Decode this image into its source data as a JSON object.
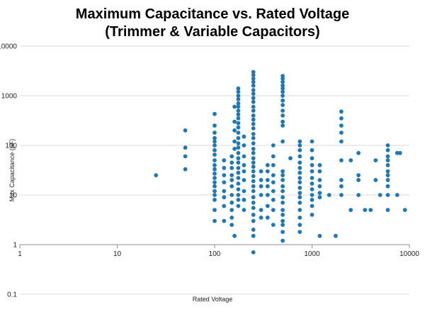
{
  "chart_data": {
    "type": "scatter",
    "title": [
      "Maximum Capacitance vs. Rated Voltage",
      "(Trimmer & Variable Capacitors)"
    ],
    "xlabel": "Rated Voltage",
    "ylabel": "Max Capacitance (pF)",
    "x_scale": "log",
    "y_scale": "log",
    "xlim": [
      1,
      10000
    ],
    "ylim": [
      0.1,
      10000
    ],
    "x_ticks": [
      "1",
      "10",
      "100",
      "1000",
      "10000"
    ],
    "y_ticks": [
      "0.1",
      "1",
      "10",
      "100",
      "1000",
      "10000"
    ],
    "grid": "horizontal",
    "marker_color": "#1f77b4",
    "series": [
      {
        "points": [
          [
            25,
            25
          ],
          [
            50,
            200
          ],
          [
            50,
            90
          ],
          [
            50,
            60
          ],
          [
            50,
            33
          ],
          [
            100,
            430
          ],
          [
            100,
            250
          ],
          [
            100,
            180
          ],
          [
            100,
            140
          ],
          [
            100,
            120
          ],
          [
            100,
            100
          ],
          [
            100,
            80
          ],
          [
            100,
            65
          ],
          [
            100,
            50
          ],
          [
            100,
            40
          ],
          [
            100,
            33
          ],
          [
            100,
            27
          ],
          [
            100,
            22
          ],
          [
            100,
            18
          ],
          [
            100,
            15
          ],
          [
            100,
            12
          ],
          [
            100,
            10
          ],
          [
            100,
            8
          ],
          [
            100,
            5
          ],
          [
            100,
            3
          ],
          [
            125,
            50
          ],
          [
            125,
            35
          ],
          [
            125,
            25
          ],
          [
            125,
            18
          ],
          [
            125,
            12
          ],
          [
            125,
            9
          ],
          [
            125,
            6
          ],
          [
            125,
            3
          ],
          [
            150,
            60
          ],
          [
            150,
            45
          ],
          [
            150,
            35
          ],
          [
            150,
            25
          ],
          [
            150,
            20
          ],
          [
            150,
            15
          ],
          [
            150,
            10
          ],
          [
            150,
            7
          ],
          [
            150,
            5
          ],
          [
            150,
            3.5
          ],
          [
            150,
            2.5
          ],
          [
            160,
            1.5
          ],
          [
            160,
            600
          ],
          [
            160,
            300
          ],
          [
            160,
            200
          ],
          [
            160,
            120
          ],
          [
            160,
            85
          ],
          [
            175,
            1400
          ],
          [
            175,
            1200
          ],
          [
            175,
            1000
          ],
          [
            175,
            850
          ],
          [
            175,
            700
          ],
          [
            175,
            600
          ],
          [
            175,
            500
          ],
          [
            175,
            420
          ],
          [
            175,
            350
          ],
          [
            175,
            280
          ],
          [
            175,
            230
          ],
          [
            175,
            180
          ],
          [
            175,
            140
          ],
          [
            175,
            110
          ],
          [
            175,
            90
          ],
          [
            175,
            70
          ],
          [
            175,
            55
          ],
          [
            175,
            45
          ],
          [
            175,
            35
          ],
          [
            175,
            28
          ],
          [
            175,
            22
          ],
          [
            175,
            17
          ],
          [
            175,
            13
          ],
          [
            175,
            10
          ],
          [
            175,
            8
          ],
          [
            175,
            6
          ],
          [
            200,
            150
          ],
          [
            200,
            100
          ],
          [
            200,
            60
          ],
          [
            200,
            40
          ],
          [
            200,
            30
          ],
          [
            200,
            20
          ],
          [
            200,
            12
          ],
          [
            200,
            8
          ],
          [
            200,
            5
          ],
          [
            250,
            3000
          ],
          [
            250,
            2600
          ],
          [
            250,
            2200
          ],
          [
            250,
            1900
          ],
          [
            250,
            1600
          ],
          [
            250,
            1300
          ],
          [
            250,
            1100
          ],
          [
            250,
            900
          ],
          [
            250,
            750
          ],
          [
            250,
            600
          ],
          [
            250,
            500
          ],
          [
            250,
            400
          ],
          [
            250,
            330
          ],
          [
            250,
            270
          ],
          [
            250,
            220
          ],
          [
            250,
            170
          ],
          [
            250,
            140
          ],
          [
            250,
            110
          ],
          [
            250,
            85
          ],
          [
            250,
            70
          ],
          [
            250,
            55
          ],
          [
            250,
            45
          ],
          [
            250,
            37
          ],
          [
            250,
            30
          ],
          [
            250,
            24
          ],
          [
            250,
            19
          ],
          [
            250,
            15
          ],
          [
            250,
            12
          ],
          [
            250,
            9
          ],
          [
            250,
            7
          ],
          [
            250,
            5.5
          ],
          [
            250,
            4
          ],
          [
            250,
            3
          ],
          [
            250,
            2
          ],
          [
            250,
            1.5
          ],
          [
            250,
            0.7
          ],
          [
            300,
            30
          ],
          [
            300,
            20
          ],
          [
            300,
            15
          ],
          [
            300,
            10
          ],
          [
            300,
            5
          ],
          [
            300,
            3.5
          ],
          [
            350,
            40
          ],
          [
            350,
            30
          ],
          [
            350,
            20
          ],
          [
            350,
            15
          ],
          [
            350,
            10
          ],
          [
            350,
            6
          ],
          [
            350,
            3.5
          ],
          [
            400,
            100
          ],
          [
            400,
            60
          ],
          [
            400,
            40
          ],
          [
            400,
            25
          ],
          [
            400,
            18
          ],
          [
            400,
            12
          ],
          [
            400,
            8
          ],
          [
            400,
            5
          ],
          [
            400,
            2.5
          ],
          [
            500,
            2500
          ],
          [
            500,
            2200
          ],
          [
            500,
            1900
          ],
          [
            500,
            1600
          ],
          [
            500,
            1400
          ],
          [
            500,
            1200
          ],
          [
            500,
            1000
          ],
          [
            500,
            800
          ],
          [
            500,
            650
          ],
          [
            500,
            500
          ],
          [
            500,
            400
          ],
          [
            500,
            300
          ],
          [
            500,
            250
          ],
          [
            500,
            120
          ],
          [
            500,
            30
          ],
          [
            500,
            25
          ],
          [
            500,
            20
          ],
          [
            500,
            15
          ],
          [
            500,
            12
          ],
          [
            500,
            9
          ],
          [
            500,
            7
          ],
          [
            500,
            5
          ],
          [
            500,
            4
          ],
          [
            500,
            3
          ],
          [
            500,
            2.5
          ],
          [
            500,
            1.8
          ],
          [
            500,
            1.2
          ],
          [
            600,
            55
          ],
          [
            750,
            120
          ],
          [
            750,
            100
          ],
          [
            750,
            80
          ],
          [
            750,
            60
          ],
          [
            750,
            45
          ],
          [
            750,
            35
          ],
          [
            750,
            28
          ],
          [
            750,
            22
          ],
          [
            750,
            18
          ],
          [
            750,
            14
          ],
          [
            750,
            11
          ],
          [
            750,
            9
          ],
          [
            750,
            7
          ],
          [
            750,
            5
          ],
          [
            750,
            3.5
          ],
          [
            750,
            2.5
          ],
          [
            750,
            1.8
          ],
          [
            1000,
            120
          ],
          [
            1000,
            80
          ],
          [
            1000,
            55
          ],
          [
            1000,
            40
          ],
          [
            1000,
            30
          ],
          [
            1000,
            22
          ],
          [
            1000,
            17
          ],
          [
            1000,
            13
          ],
          [
            1000,
            10
          ],
          [
            1000,
            8
          ],
          [
            1000,
            6
          ],
          [
            1000,
            4
          ],
          [
            1200,
            40
          ],
          [
            1200,
            30
          ],
          [
            1200,
            20
          ],
          [
            1200,
            15
          ],
          [
            1200,
            11
          ],
          [
            1200,
            9
          ],
          [
            1200,
            1.5
          ],
          [
            1500,
            10
          ],
          [
            1750,
            1.5
          ],
          [
            2000,
            480
          ],
          [
            2000,
            350
          ],
          [
            2000,
            250
          ],
          [
            2000,
            180
          ],
          [
            2000,
            120
          ],
          [
            2000,
            50
          ],
          [
            2000,
            20
          ],
          [
            2000,
            15
          ],
          [
            2000,
            10
          ],
          [
            2500,
            50
          ],
          [
            2500,
            5
          ],
          [
            3000,
            70
          ],
          [
            3000,
            25
          ],
          [
            3000,
            20
          ],
          [
            3000,
            10
          ],
          [
            3500,
            5
          ],
          [
            4000,
            5
          ],
          [
            4500,
            50
          ],
          [
            4500,
            20
          ],
          [
            5000,
            10
          ],
          [
            6000,
            100
          ],
          [
            6000,
            80
          ],
          [
            6000,
            60
          ],
          [
            6000,
            50
          ],
          [
            6000,
            40
          ],
          [
            6000,
            30
          ],
          [
            6000,
            25
          ],
          [
            6000,
            20
          ],
          [
            6000,
            15
          ],
          [
            6000,
            10
          ],
          [
            6000,
            5
          ],
          [
            7500,
            70
          ],
          [
            7500,
            10
          ],
          [
            8000,
            70
          ],
          [
            9000,
            5
          ]
        ]
      }
    ]
  }
}
